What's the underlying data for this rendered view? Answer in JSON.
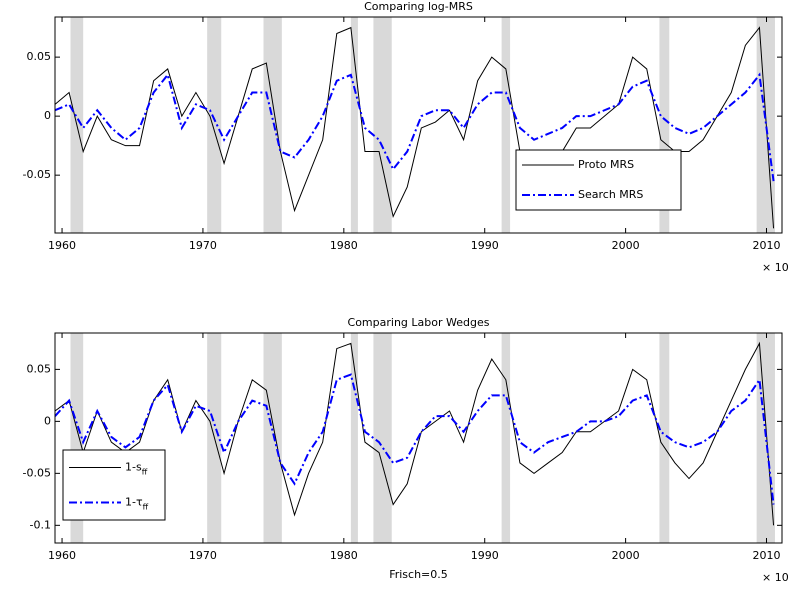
{
  "chart_data": [
    {
      "type": "line",
      "title": "Comparing log-MRS",
      "x_exponent_label": "× 10",
      "x": [
        1959.5,
        1960.5,
        1961.5,
        1962.5,
        1963.5,
        1964.5,
        1965.5,
        1966.5,
        1967.5,
        1968.5,
        1969.5,
        1970.5,
        1971.5,
        1972.5,
        1973.5,
        1974.5,
        1975.5,
        1976.5,
        1977.5,
        1978.5,
        1979.5,
        1980.5,
        1981.5,
        1982.5,
        1983.5,
        1984.5,
        1985.5,
        1986.5,
        1987.5,
        1988.5,
        1989.5,
        1990.5,
        1991.5,
        1992.5,
        1993.5,
        1994.5,
        1995.5,
        1996.5,
        1997.5,
        1998.5,
        1999.5,
        2000.5,
        2001.5,
        2002.5,
        2003.5,
        2004.5,
        2005.5,
        2006.5,
        2007.5,
        2008.5,
        2009.5,
        2010.5
      ],
      "series": [
        {
          "name": "Proto MRS",
          "color": "#000000",
          "style": "solid",
          "values": [
            0.01,
            0.02,
            -0.03,
            0.0,
            -0.02,
            -0.025,
            -0.025,
            0.03,
            0.04,
            0.0,
            0.02,
            0.0,
            -0.04,
            0.0,
            0.04,
            0.045,
            -0.03,
            -0.08,
            -0.05,
            -0.02,
            0.07,
            0.075,
            -0.03,
            -0.03,
            -0.085,
            -0.06,
            -0.01,
            -0.005,
            0.005,
            -0.02,
            0.03,
            0.05,
            0.04,
            -0.03,
            -0.05,
            -0.04,
            -0.03,
            -0.01,
            -0.01,
            0.0,
            0.01,
            0.05,
            0.04,
            -0.02,
            -0.03,
            -0.03,
            -0.02,
            0.0,
            0.02,
            0.06,
            0.075,
            -0.095
          ]
        },
        {
          "name": "Search MRS",
          "color": "#0000ff",
          "style": "dash-dot",
          "values": [
            0.005,
            0.01,
            -0.01,
            0.005,
            -0.01,
            -0.02,
            -0.01,
            0.02,
            0.035,
            -0.01,
            0.01,
            0.005,
            -0.02,
            0.0,
            0.02,
            0.02,
            -0.03,
            -0.035,
            -0.02,
            0.0,
            0.03,
            0.035,
            -0.01,
            -0.02,
            -0.045,
            -0.03,
            0.0,
            0.005,
            0.005,
            -0.01,
            0.01,
            0.02,
            0.02,
            -0.01,
            -0.02,
            -0.015,
            -0.01,
            0.0,
            0.0,
            0.005,
            0.01,
            0.025,
            0.03,
            0.0,
            -0.01,
            -0.015,
            -0.01,
            0.0,
            0.01,
            0.02,
            0.035,
            -0.055
          ]
        }
      ],
      "recessions": [
        [
          1960.6,
          1961.5
        ],
        [
          1970.3,
          1971.3
        ],
        [
          1974.3,
          1975.6
        ],
        [
          1980.5,
          1981.0
        ],
        [
          1982.1,
          1983.4
        ],
        [
          1991.2,
          1991.8
        ],
        [
          2002.4,
          2003.1
        ],
        [
          2009.3,
          2010.6
        ]
      ],
      "recession_color": "#d9d9d9",
      "xlim": [
        1959.5,
        2011.1
      ],
      "xticks": [
        1960,
        1970,
        1980,
        1990,
        2000,
        2010
      ],
      "ylim": [
        -0.099,
        0.084
      ],
      "yticks": [
        -0.05,
        0,
        0.05
      ],
      "legend": "lower right"
    },
    {
      "type": "line",
      "title": "Comparing Labor Wedges",
      "x_label": "Frisch=0.5",
      "x_exponent_label": "× 10",
      "x": [
        1959.5,
        1960.5,
        1961.5,
        1962.5,
        1963.5,
        1964.5,
        1965.5,
        1966.5,
        1967.5,
        1968.5,
        1969.5,
        1970.5,
        1971.5,
        1972.5,
        1973.5,
        1974.5,
        1975.5,
        1976.5,
        1977.5,
        1978.5,
        1979.5,
        1980.5,
        1981.5,
        1982.5,
        1983.5,
        1984.5,
        1985.5,
        1986.5,
        1987.5,
        1988.5,
        1989.5,
        1990.5,
        1991.5,
        1992.5,
        1993.5,
        1994.5,
        1995.5,
        1996.5,
        1997.5,
        1998.5,
        1999.5,
        2000.5,
        2001.5,
        2002.5,
        2003.5,
        2004.5,
        2005.5,
        2006.5,
        2007.5,
        2008.5,
        2009.5,
        2010.5
      ],
      "series": [
        {
          "name": "1-s",
          "subscript": "ff",
          "color": "#000000",
          "style": "solid",
          "values": [
            0.01,
            0.02,
            -0.03,
            0.01,
            -0.02,
            -0.03,
            -0.02,
            0.02,
            0.04,
            -0.01,
            0.02,
            0.0,
            -0.05,
            0.0,
            0.04,
            0.03,
            -0.04,
            -0.09,
            -0.05,
            -0.02,
            0.07,
            0.075,
            -0.02,
            -0.03,
            -0.08,
            -0.06,
            -0.01,
            0.0,
            0.01,
            -0.02,
            0.03,
            0.06,
            0.04,
            -0.04,
            -0.05,
            -0.04,
            -0.03,
            -0.01,
            -0.01,
            0.0,
            0.01,
            0.05,
            0.04,
            -0.02,
            -0.04,
            -0.055,
            -0.04,
            -0.01,
            0.02,
            0.05,
            0.075,
            -0.1
          ]
        },
        {
          "name": "1-τ",
          "subscript": "ff",
          "color": "#0000ff",
          "style": "dash-dot",
          "values": [
            0.005,
            0.02,
            -0.02,
            0.01,
            -0.015,
            -0.025,
            -0.015,
            0.02,
            0.035,
            -0.01,
            0.015,
            0.01,
            -0.03,
            0.0,
            0.02,
            0.015,
            -0.04,
            -0.06,
            -0.03,
            -0.01,
            0.04,
            0.045,
            -0.01,
            -0.02,
            -0.04,
            -0.035,
            -0.01,
            0.005,
            0.005,
            -0.01,
            0.01,
            0.025,
            0.025,
            -0.02,
            -0.03,
            -0.02,
            -0.015,
            -0.01,
            0.0,
            0.0,
            0.005,
            0.02,
            0.025,
            -0.01,
            -0.02,
            -0.025,
            -0.02,
            -0.01,
            0.01,
            0.02,
            0.04,
            -0.08
          ]
        }
      ],
      "recessions": [
        [
          1960.6,
          1961.5
        ],
        [
          1970.3,
          1971.3
        ],
        [
          1974.3,
          1975.6
        ],
        [
          1980.5,
          1981.0
        ],
        [
          1982.1,
          1983.4
        ],
        [
          1991.2,
          1991.8
        ],
        [
          2002.4,
          2003.1
        ],
        [
          2009.3,
          2010.6
        ]
      ],
      "recession_color": "#d9d9d9",
      "xlim": [
        1959.5,
        2011.1
      ],
      "xticks": [
        1960,
        1970,
        1980,
        1990,
        2000,
        2010
      ],
      "ylim": [
        -0.117,
        0.085
      ],
      "yticks": [
        -0.1,
        -0.05,
        0,
        0.05
      ],
      "legend": "lower left"
    }
  ]
}
